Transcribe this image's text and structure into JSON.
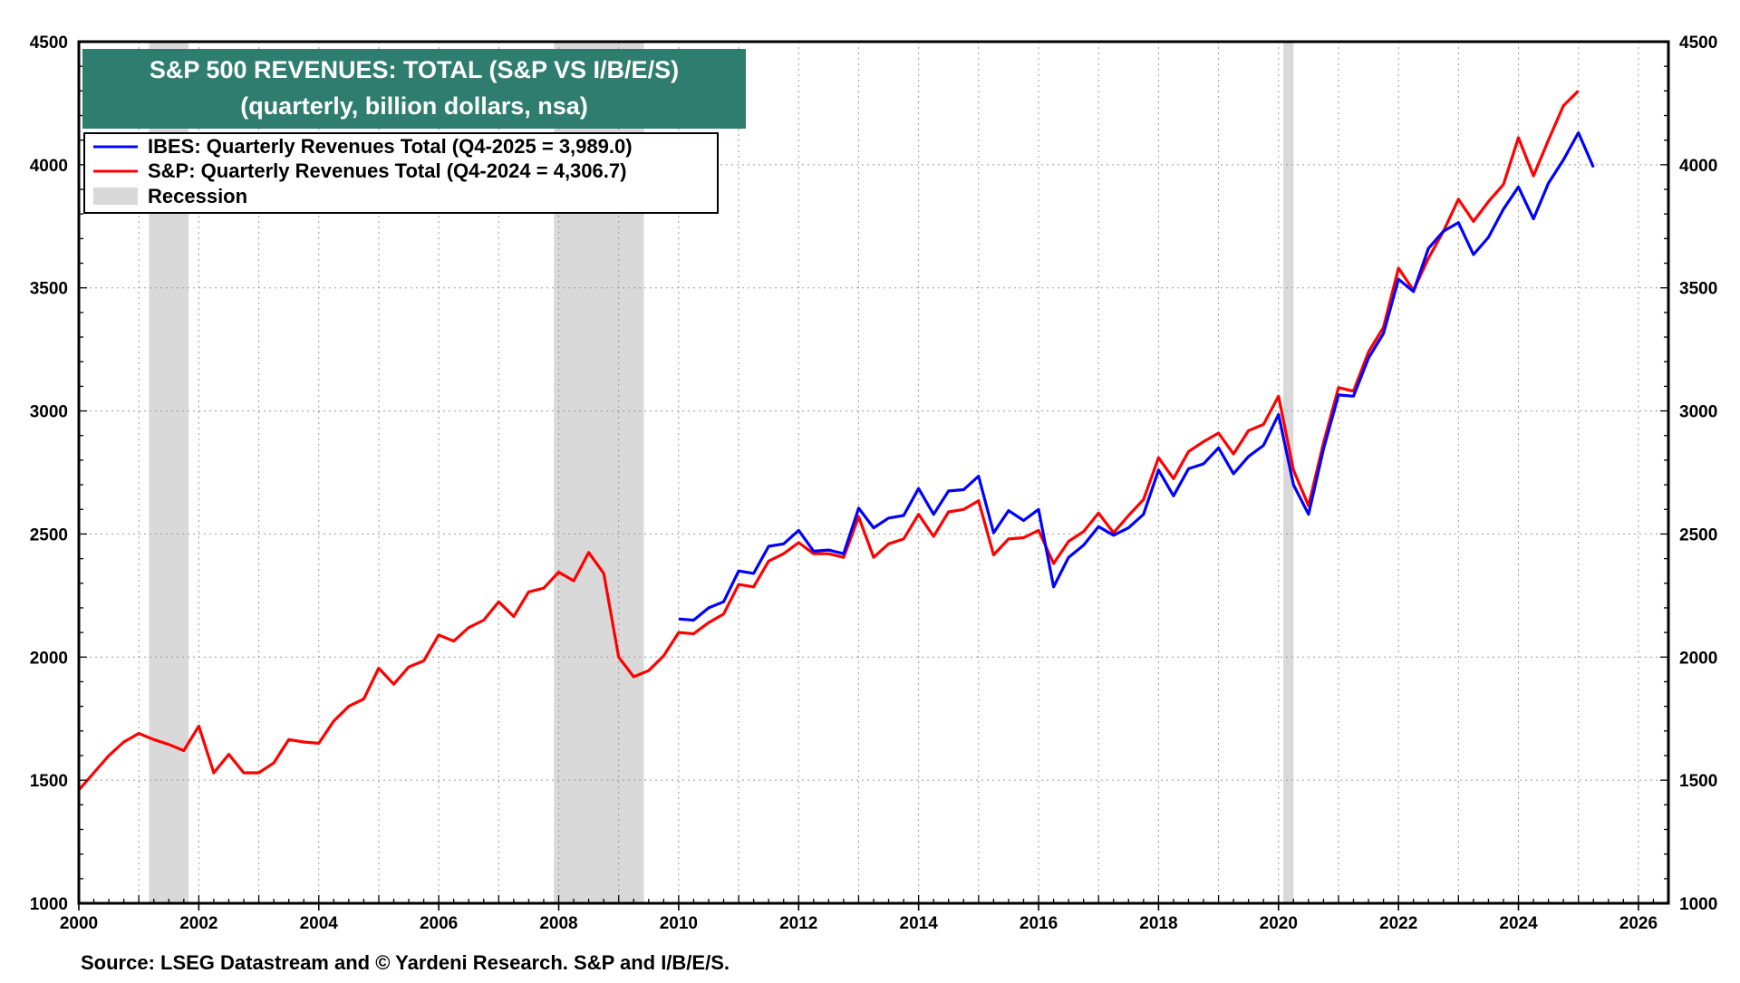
{
  "chart_data": {
    "type": "line",
    "title": "S&P 500 REVENUES: TOTAL (S&P VS I/B/E/S)",
    "subtitle": "(quarterly, billion dollars, nsa)",
    "xlabel": "",
    "ylabel": "",
    "xlim": [
      2000,
      2026.5
    ],
    "ylim": [
      1000,
      4500
    ],
    "x_ticks": [
      "2000",
      "2002",
      "2004",
      "2006",
      "2008",
      "2010",
      "2012",
      "2014",
      "2016",
      "2018",
      "2020",
      "2022",
      "2024",
      "2026"
    ],
    "y_ticks": [
      "1000",
      "1500",
      "2000",
      "2500",
      "3000",
      "3500",
      "4000",
      "4500"
    ],
    "grid": true,
    "legend_position": "top-left",
    "legend": [
      {
        "label": "IBES: Quarterly Revenues Total (Q4-2025 = 3,989.0)",
        "color": "#0000ff"
      },
      {
        "label": "S&P: Quarterly Revenues Total (Q4-2024 = 4,306.7)",
        "color": "#ff0000"
      },
      {
        "label": "Recession",
        "color": "#d9d9d9"
      }
    ],
    "recessions": [
      [
        2001.17,
        2001.83
      ],
      [
        2007.92,
        2009.42
      ],
      [
        2020.08,
        2020.25
      ]
    ],
    "source": "Source: LSEG Datastream and © Yardeni Research. S&P and I/B/E/S.",
    "title_bg_color": "#2e7d6e",
    "series": [
      {
        "name": "S&P: Quarterly Revenues Total",
        "color": "#ff0000",
        "x": [
          2000.0,
          2000.25,
          2000.5,
          2000.75,
          2001.0,
          2001.25,
          2001.5,
          2001.75,
          2002.0,
          2002.25,
          2002.5,
          2002.75,
          2003.0,
          2003.25,
          2003.5,
          2003.75,
          2004.0,
          2004.25,
          2004.5,
          2004.75,
          2005.0,
          2005.25,
          2005.5,
          2005.75,
          2006.0,
          2006.25,
          2006.5,
          2006.75,
          2007.0,
          2007.25,
          2007.5,
          2007.75,
          2008.0,
          2008.25,
          2008.5,
          2008.75,
          2009.0,
          2009.25,
          2009.5,
          2009.75,
          2010.0,
          2010.25,
          2010.5,
          2010.75,
          2011.0,
          2011.25,
          2011.5,
          2011.75,
          2012.0,
          2012.25,
          2012.5,
          2012.75,
          2013.0,
          2013.25,
          2013.5,
          2013.75,
          2014.0,
          2014.25,
          2014.5,
          2014.75,
          2015.0,
          2015.25,
          2015.5,
          2015.75,
          2016.0,
          2016.25,
          2016.5,
          2016.75,
          2017.0,
          2017.25,
          2017.5,
          2017.75,
          2018.0,
          2018.25,
          2018.5,
          2018.75,
          2019.0,
          2019.25,
          2019.5,
          2019.75,
          2020.0,
          2020.25,
          2020.5,
          2020.75,
          2021.0,
          2021.25,
          2021.5,
          2021.75,
          2022.0,
          2022.25,
          2022.5,
          2022.75,
          2023.0,
          2023.25,
          2023.5,
          2023.75,
          2024.0,
          2024.25,
          2024.5,
          2024.75,
          2025.0
        ],
        "values": [
          1460,
          1530,
          1600,
          1655,
          1690,
          1665,
          1645,
          1620,
          1720,
          1530,
          1605,
          1530,
          1530,
          1570,
          1665,
          1655,
          1650,
          1740,
          1800,
          1830,
          1955,
          1890,
          1960,
          1985,
          2090,
          2065,
          2120,
          2150,
          2225,
          2165,
          2265,
          2280,
          2345,
          2310,
          2425,
          2340,
          2000,
          1920,
          1945,
          2005,
          2100,
          2095,
          2140,
          2175,
          2295,
          2285,
          2390,
          2420,
          2465,
          2420,
          2420,
          2405,
          2570,
          2405,
          2460,
          2480,
          2580,
          2490,
          2590,
          2600,
          2635,
          2415,
          2480,
          2485,
          2515,
          2380,
          2470,
          2510,
          2585,
          2505,
          2575,
          2640,
          2810,
          2725,
          2835,
          2875,
          2910,
          2825,
          2920,
          2945,
          3060,
          2760,
          2615,
          2870,
          3095,
          3080,
          3240,
          3340,
          3580,
          3490,
          3620,
          3730,
          3860,
          3770,
          3850,
          3920,
          4110,
          3955,
          4100,
          4240,
          4300
        ]
      },
      {
        "name": "IBES: Quarterly Revenues Total",
        "color": "#0000ff",
        "x": [
          2010.0,
          2010.25,
          2010.5,
          2010.75,
          2011.0,
          2011.25,
          2011.5,
          2011.75,
          2012.0,
          2012.25,
          2012.5,
          2012.75,
          2013.0,
          2013.25,
          2013.5,
          2013.75,
          2014.0,
          2014.25,
          2014.5,
          2014.75,
          2015.0,
          2015.25,
          2015.5,
          2015.75,
          2016.0,
          2016.25,
          2016.5,
          2016.75,
          2017.0,
          2017.25,
          2017.5,
          2017.75,
          2018.0,
          2018.25,
          2018.5,
          2018.75,
          2019.0,
          2019.25,
          2019.5,
          2019.75,
          2020.0,
          2020.25,
          2020.5,
          2020.75,
          2021.0,
          2021.25,
          2021.5,
          2021.75,
          2022.0,
          2022.25,
          2022.5,
          2022.75,
          2023.0,
          2023.25,
          2023.5,
          2023.75,
          2024.0,
          2024.25,
          2024.5,
          2024.75,
          2025.0,
          2025.25
        ],
        "values": [
          2155,
          2150,
          2200,
          2225,
          2350,
          2340,
          2450,
          2460,
          2515,
          2430,
          2435,
          2420,
          2605,
          2525,
          2565,
          2575,
          2685,
          2580,
          2675,
          2680,
          2735,
          2505,
          2595,
          2555,
          2600,
          2285,
          2405,
          2455,
          2530,
          2495,
          2525,
          2580,
          2760,
          2655,
          2765,
          2785,
          2850,
          2745,
          2815,
          2860,
          2985,
          2700,
          2580,
          2845,
          3065,
          3060,
          3215,
          3315,
          3535,
          3485,
          3660,
          3730,
          3765,
          3635,
          3705,
          3820,
          3910,
          3780,
          3925,
          4020,
          4130,
          3990
        ]
      }
    ]
  }
}
